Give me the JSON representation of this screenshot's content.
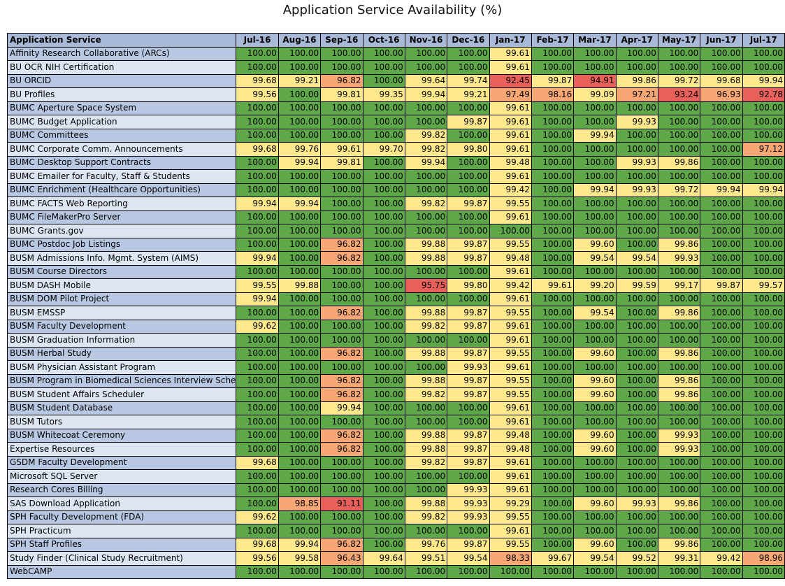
{
  "chart_data": {
    "type": "table",
    "title": "Application Service Availability (%)",
    "header_label": "Application Service",
    "columns": [
      "Jul-16",
      "Aug-16",
      "Sep-16",
      "Oct-16",
      "Nov-16",
      "Dec-16",
      "Jan-17",
      "Feb-17",
      "Mar-17",
      "Apr-17",
      "May-17",
      "Jun-17",
      "Jul-17"
    ],
    "colors": {
      "green": "#5fa84a",
      "yellow": "#fde98b",
      "orange": "#f7a774",
      "red": "#e8605a"
    },
    "rows": [
      {
        "name": "Affinity Research Collaborative (ARCs)",
        "values": [
          "100.00",
          "100.00",
          "100.00",
          "100.00",
          "100.00",
          "100.00",
          "99.61",
          "100.00",
          "100.00",
          "100.00",
          "100.00",
          "100.00",
          "100.00"
        ]
      },
      {
        "name": "BU OCR NIH Certification",
        "values": [
          "100.00",
          "100.00",
          "100.00",
          "100.00",
          "100.00",
          "100.00",
          "99.61",
          "100.00",
          "100.00",
          "100.00",
          "100.00",
          "100.00",
          "100.00"
        ]
      },
      {
        "name": "BU ORCID",
        "values": [
          "99.68",
          "99.21",
          "96.82",
          "100.00",
          "99.64",
          "99.74",
          "92.45",
          "99.87",
          "94.91",
          "99.86",
          "99.72",
          "99.68",
          "99.94"
        ]
      },
      {
        "name": "BU Profiles",
        "values": [
          "99.56",
          "100.00",
          "99.81",
          "99.35",
          "99.94",
          "99.21",
          "97.49",
          "98.16",
          "99.09",
          "97.21",
          "93.24",
          "96.93",
          "92.78"
        ]
      },
      {
        "name": "BUMC Aperture Space System",
        "values": [
          "100.00",
          "100.00",
          "100.00",
          "100.00",
          "100.00",
          "100.00",
          "99.61",
          "100.00",
          "100.00",
          "100.00",
          "100.00",
          "100.00",
          "100.00"
        ]
      },
      {
        "name": "BUMC Budget Application",
        "values": [
          "100.00",
          "100.00",
          "100.00",
          "100.00",
          "100.00",
          "99.87",
          "99.61",
          "100.00",
          "100.00",
          "99.93",
          "100.00",
          "100.00",
          "100.00"
        ]
      },
      {
        "name": "BUMC Committees",
        "values": [
          "100.00",
          "100.00",
          "100.00",
          "100.00",
          "99.82",
          "100.00",
          "99.61",
          "100.00",
          "99.94",
          "100.00",
          "100.00",
          "100.00",
          "100.00"
        ]
      },
      {
        "name": "BUMC Corporate Comm. Announcements",
        "values": [
          "99.68",
          "99.76",
          "99.61",
          "99.70",
          "99.82",
          "99.80",
          "99.61",
          "100.00",
          "100.00",
          "100.00",
          "100.00",
          "100.00",
          "97.12"
        ]
      },
      {
        "name": "BUMC Desktop Support Contracts",
        "values": [
          "100.00",
          "99.94",
          "99.81",
          "100.00",
          "99.94",
          "100.00",
          "99.48",
          "100.00",
          "100.00",
          "99.93",
          "99.86",
          "100.00",
          "100.00"
        ]
      },
      {
        "name": "BUMC Emailer for Faculty, Staff & Students",
        "values": [
          "100.00",
          "100.00",
          "100.00",
          "100.00",
          "100.00",
          "100.00",
          "99.61",
          "100.00",
          "100.00",
          "100.00",
          "100.00",
          "100.00",
          "100.00"
        ]
      },
      {
        "name": "BUMC Enrichment (Healthcare Opportunities)",
        "values": [
          "100.00",
          "100.00",
          "100.00",
          "100.00",
          "100.00",
          "100.00",
          "99.42",
          "100.00",
          "99.94",
          "99.93",
          "99.72",
          "99.94",
          "99.94"
        ]
      },
      {
        "name": "BUMC FACTS Web Reporting",
        "values": [
          "99.94",
          "99.94",
          "100.00",
          "100.00",
          "99.82",
          "99.87",
          "99.55",
          "100.00",
          "100.00",
          "100.00",
          "100.00",
          "100.00",
          "100.00"
        ]
      },
      {
        "name": "BUMC FileMakerPro Server",
        "values": [
          "100.00",
          "100.00",
          "100.00",
          "100.00",
          "100.00",
          "100.00",
          "99.61",
          "100.00",
          "100.00",
          "100.00",
          "100.00",
          "100.00",
          "100.00"
        ]
      },
      {
        "name": "BUMC Grants.gov",
        "values": [
          "100.00",
          "100.00",
          "100.00",
          "100.00",
          "100.00",
          "100.00",
          "100.00",
          "100.00",
          "100.00",
          "100.00",
          "100.00",
          "100.00",
          "100.00"
        ]
      },
      {
        "name": "BUMC Postdoc Job Listings",
        "values": [
          "100.00",
          "100.00",
          "96.82",
          "100.00",
          "99.88",
          "99.87",
          "99.55",
          "100.00",
          "99.60",
          "100.00",
          "99.86",
          "100.00",
          "100.00"
        ]
      },
      {
        "name": "BUSM Admissions Info. Mgmt. System (AIMS)",
        "values": [
          "99.94",
          "100.00",
          "96.82",
          "100.00",
          "99.88",
          "99.87",
          "99.48",
          "100.00",
          "99.54",
          "99.54",
          "99.93",
          "100.00",
          "100.00"
        ]
      },
      {
        "name": "BUSM Course Directors",
        "values": [
          "100.00",
          "100.00",
          "100.00",
          "100.00",
          "100.00",
          "100.00",
          "99.61",
          "100.00",
          "100.00",
          "100.00",
          "100.00",
          "100.00",
          "100.00"
        ]
      },
      {
        "name": "BUSM DASH Mobile",
        "values": [
          "99.55",
          "99.88",
          "100.00",
          "100.00",
          "95.75",
          "99.80",
          "99.42",
          "99.61",
          "99.20",
          "99.59",
          "99.17",
          "99.87",
          "99.57"
        ]
      },
      {
        "name": "BUSM DOM Pilot Project",
        "values": [
          "99.94",
          "100.00",
          "100.00",
          "100.00",
          "100.00",
          "100.00",
          "99.61",
          "100.00",
          "100.00",
          "100.00",
          "100.00",
          "100.00",
          "100.00"
        ]
      },
      {
        "name": "BUSM EMSSP",
        "values": [
          "100.00",
          "100.00",
          "96.82",
          "100.00",
          "99.88",
          "99.87",
          "99.55",
          "100.00",
          "99.54",
          "100.00",
          "99.86",
          "100.00",
          "100.00"
        ]
      },
      {
        "name": "BUSM Faculty Development",
        "values": [
          "99.62",
          "100.00",
          "100.00",
          "100.00",
          "99.82",
          "99.87",
          "99.61",
          "100.00",
          "100.00",
          "100.00",
          "100.00",
          "100.00",
          "100.00"
        ]
      },
      {
        "name": "BUSM Graduation Information",
        "values": [
          "100.00",
          "100.00",
          "100.00",
          "100.00",
          "100.00",
          "100.00",
          "99.61",
          "100.00",
          "100.00",
          "100.00",
          "100.00",
          "100.00",
          "100.00"
        ]
      },
      {
        "name": "BUSM Herbal Study",
        "values": [
          "100.00",
          "100.00",
          "96.82",
          "100.00",
          "99.88",
          "99.87",
          "99.55",
          "100.00",
          "99.60",
          "100.00",
          "99.86",
          "100.00",
          "100.00"
        ]
      },
      {
        "name": "BUSM Physician Assistant Program",
        "values": [
          "100.00",
          "100.00",
          "100.00",
          "100.00",
          "100.00",
          "99.93",
          "99.61",
          "100.00",
          "100.00",
          "100.00",
          "100.00",
          "100.00",
          "100.00"
        ]
      },
      {
        "name": "BUSM Program in Biomedical Sciences Interview Sche",
        "values": [
          "100.00",
          "100.00",
          "96.82",
          "100.00",
          "99.88",
          "99.87",
          "99.55",
          "100.00",
          "99.60",
          "100.00",
          "99.86",
          "100.00",
          "100.00"
        ]
      },
      {
        "name": "BUSM Student Affairs Scheduler",
        "values": [
          "100.00",
          "100.00",
          "96.82",
          "100.00",
          "99.82",
          "99.87",
          "99.55",
          "100.00",
          "99.60",
          "100.00",
          "99.86",
          "100.00",
          "100.00"
        ]
      },
      {
        "name": "BUSM Student Database",
        "values": [
          "100.00",
          "100.00",
          "99.94",
          "100.00",
          "100.00",
          "100.00",
          "99.61",
          "100.00",
          "100.00",
          "100.00",
          "100.00",
          "100.00",
          "100.00"
        ]
      },
      {
        "name": "BUSM Tutors",
        "values": [
          "100.00",
          "100.00",
          "100.00",
          "100.00",
          "100.00",
          "100.00",
          "99.61",
          "100.00",
          "100.00",
          "100.00",
          "100.00",
          "100.00",
          "100.00"
        ]
      },
      {
        "name": "BUSM Whitecoat Ceremony",
        "values": [
          "100.00",
          "100.00",
          "96.82",
          "100.00",
          "99.88",
          "99.87",
          "99.48",
          "100.00",
          "99.60",
          "100.00",
          "99.93",
          "100.00",
          "100.00"
        ]
      },
      {
        "name": "Expertise Resources",
        "values": [
          "100.00",
          "100.00",
          "96.82",
          "100.00",
          "99.88",
          "99.87",
          "99.48",
          "100.00",
          "99.60",
          "100.00",
          "99.93",
          "100.00",
          "100.00"
        ]
      },
      {
        "name": "GSDM Faculty Development",
        "values": [
          "99.68",
          "100.00",
          "100.00",
          "100.00",
          "99.82",
          "99.87",
          "99.61",
          "100.00",
          "100.00",
          "100.00",
          "100.00",
          "100.00",
          "100.00"
        ]
      },
      {
        "name": "Microsoft SQL Server",
        "values": [
          "100.00",
          "100.00",
          "100.00",
          "100.00",
          "100.00",
          "100.00",
          "99.61",
          "100.00",
          "100.00",
          "100.00",
          "100.00",
          "100.00",
          "100.00"
        ]
      },
      {
        "name": "Research Cores Billing",
        "values": [
          "100.00",
          "100.00",
          "100.00",
          "100.00",
          "100.00",
          "99.93",
          "99.61",
          "100.00",
          "100.00",
          "100.00",
          "100.00",
          "100.00",
          "100.00"
        ]
      },
      {
        "name": "SAS Download Application",
        "values": [
          "100.00",
          "98.85",
          "91.11",
          "100.00",
          "99.88",
          "99.93",
          "99.29",
          "100.00",
          "99.60",
          "99.93",
          "99.86",
          "100.00",
          "100.00"
        ]
      },
      {
        "name": "SPH Faculty Development (FDA)",
        "values": [
          "99.62",
          "100.00",
          "100.00",
          "100.00",
          "99.82",
          "99.93",
          "99.55",
          "100.00",
          "100.00",
          "100.00",
          "100.00",
          "100.00",
          "100.00"
        ]
      },
      {
        "name": "SPH Practicum",
        "values": [
          "100.00",
          "100.00",
          "100.00",
          "100.00",
          "100.00",
          "100.00",
          "99.61",
          "100.00",
          "100.00",
          "100.00",
          "100.00",
          "100.00",
          "100.00"
        ]
      },
      {
        "name": "SPH Staff Profiles",
        "values": [
          "99.68",
          "99.94",
          "96.82",
          "100.00",
          "99.76",
          "99.87",
          "99.55",
          "100.00",
          "99.60",
          "100.00",
          "99.86",
          "100.00",
          "100.00"
        ]
      },
      {
        "name": "Study Finder (Clinical Study Recruitment)",
        "values": [
          "99.56",
          "99.58",
          "96.43",
          "99.64",
          "99.51",
          "99.54",
          "98.33",
          "99.67",
          "99.54",
          "99.52",
          "99.31",
          "99.42",
          "98.96"
        ]
      },
      {
        "name": "WebCAMP",
        "values": [
          "100.00",
          "100.00",
          "100.00",
          "100.00",
          "100.00",
          "100.00",
          "100.00",
          "100.00",
          "100.00",
          "100.00",
          "100.00",
          "100.00",
          "100.00"
        ]
      }
    ]
  }
}
